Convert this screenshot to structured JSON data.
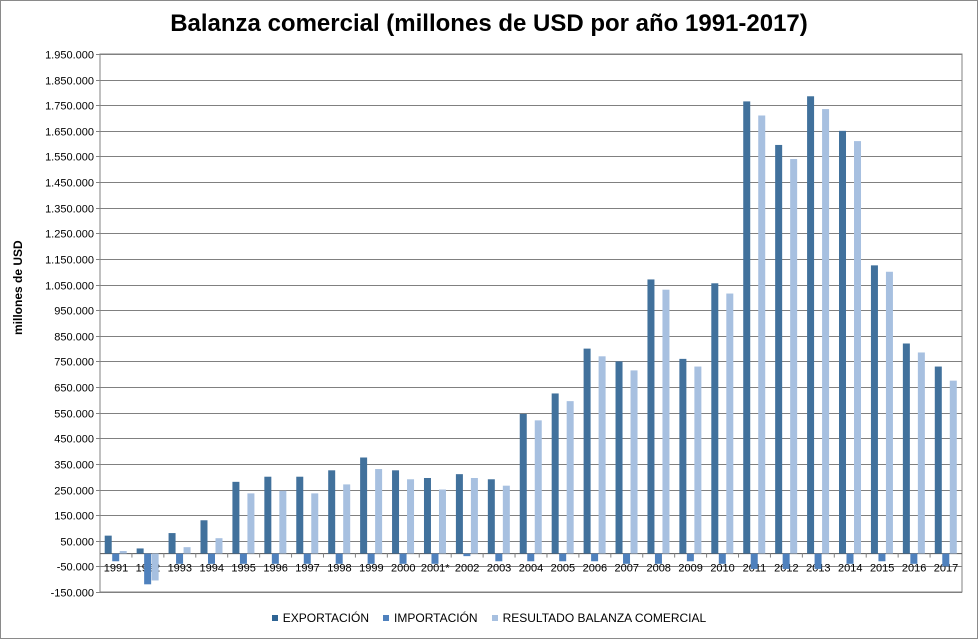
{
  "chart_data": {
    "type": "bar",
    "title": "Balanza comercial (millones de USD por año 1991-2017)",
    "ylabel": "millones de USD",
    "xlabel": "",
    "ylim": [
      -150000,
      1950000
    ],
    "yticks": [
      "1.950.000",
      "1.850.000",
      "1.750.000",
      "1.650.000",
      "1.550.000",
      "1.450.000",
      "1.350.000",
      "1.250.000",
      "1.150.000",
      "1.050.000",
      "950.000",
      "850.000",
      "750.000",
      "650.000",
      "550.000",
      "450.000",
      "350.000",
      "250.000",
      "150.000",
      "50.000",
      "-50.000",
      "-150.000"
    ],
    "categories": [
      "1991",
      "1992",
      "1993",
      "1994",
      "1995",
      "1996",
      "1997",
      "1998",
      "1999",
      "2000",
      "2001*",
      "2002",
      "2003",
      "2004",
      "2005",
      "2006",
      "2007",
      "2008",
      "2009",
      "2010",
      "2011",
      "2012",
      "2013",
      "2014",
      "2015",
      "2016",
      "2017"
    ],
    "series": [
      {
        "name": "EXPORTACIÓN",
        "color": "#4f81bd",
        "values": [
          70000,
          20000,
          80000,
          130000,
          280000,
          300000,
          300000,
          325000,
          375000,
          325000,
          295000,
          310000,
          290000,
          545000,
          625000,
          800000,
          750000,
          1070000,
          760000,
          1055000,
          1765000,
          1595000,
          1785000,
          1650000,
          1125000,
          820000,
          730000
        ]
      },
      {
        "name": "IMPORTACIÓN",
        "color": "#4f81bd",
        "values": [
          -30000,
          -120000,
          -40000,
          -40000,
          -40000,
          -40000,
          -40000,
          -40000,
          -40000,
          -40000,
          -40000,
          -10000,
          -30000,
          -30000,
          -30000,
          -30000,
          -40000,
          -40000,
          -30000,
          -40000,
          -60000,
          -60000,
          -60000,
          -40000,
          -30000,
          -40000,
          -50000
        ]
      },
      {
        "name": "RESULTADO BALANZA COMERCIAL",
        "color": "#a7c0e0",
        "values": [
          10000,
          -105000,
          25000,
          60000,
          235000,
          245000,
          235000,
          270000,
          330000,
          290000,
          250000,
          295000,
          265000,
          520000,
          595000,
          770000,
          715000,
          1030000,
          730000,
          1015000,
          1710000,
          1540000,
          1735000,
          1610000,
          1100000,
          785000,
          675000
        ]
      }
    ],
    "grid": true,
    "legend": "bottom"
  }
}
